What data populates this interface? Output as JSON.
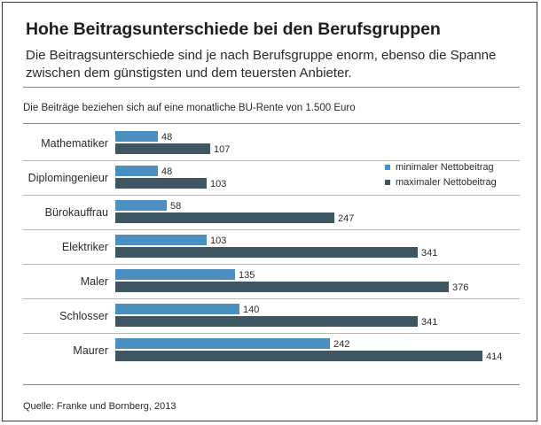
{
  "title": "Hohe Beitragsunterschiede bei den Berufsgruppen",
  "subtitle": "Die Beitragsunterschiede sind je nach Berufsgruppe enorm, ebenso die Spanne zwischen dem günstigsten und dem teuersten Anbieter.",
  "note": "Die Beiträge beziehen sich auf eine monatliche BU-Rente von 1.500 Euro",
  "source": "Quelle: Franke und Bornberg, 2013",
  "colors": {
    "min": "#4a8fc0",
    "max": "#3e5562"
  },
  "chart_data": {
    "type": "bar",
    "orientation": "horizontal",
    "title": "Hohe Beitragsunterschiede bei den Berufsgruppen",
    "xlabel": "",
    "ylabel": "",
    "xlim": [
      0,
      420
    ],
    "categories": [
      "Mathematiker",
      "Diplomingenieur",
      "Bürokauffrau",
      "Elektriker",
      "Maler",
      "Schlosser",
      "Maurer"
    ],
    "series": [
      {
        "name": "minimaler Nettobeitrag",
        "values": [
          48,
          48,
          58,
          103,
          135,
          140,
          242
        ]
      },
      {
        "name": "maximaler Nettobeitrag",
        "values": [
          107,
          103,
          247,
          341,
          376,
          341,
          414
        ]
      }
    ],
    "legend_position": "right"
  }
}
